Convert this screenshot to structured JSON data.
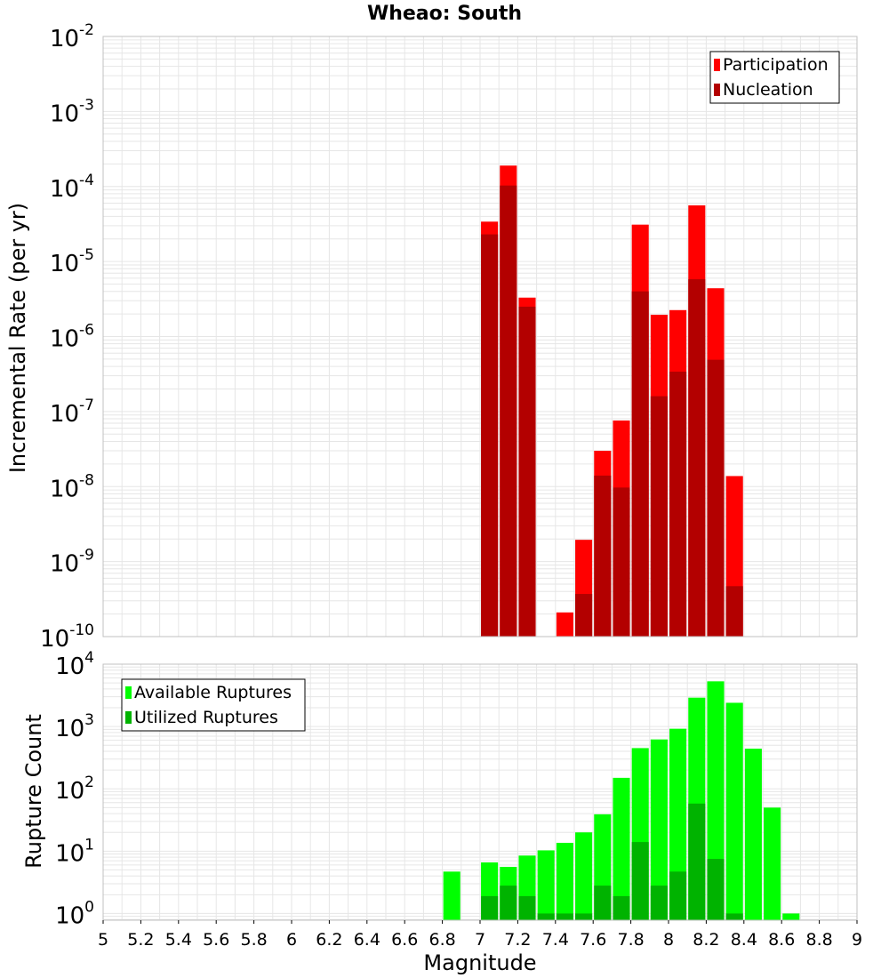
{
  "title": "Wheao: South",
  "colors": {
    "participation": "#ff0000",
    "nucleation": "#b30000",
    "available": "#00ff00",
    "utilized": "#00b300",
    "grid": "#e6e6e6",
    "frame": "#c0c0c0"
  },
  "chart_data": [
    {
      "type": "bar",
      "title": "Wheao: South",
      "xlabel": "",
      "ylabel": "Incremental Rate (per yr)",
      "yscale": "log",
      "xlim": [
        5,
        9
      ],
      "ylim": [
        1e-10,
        0.01
      ],
      "y_tick_exponents": [
        "-2",
        "-3",
        "-4",
        "-5",
        "-6",
        "-7",
        "-8",
        "-9",
        "-10"
      ],
      "y_tick_base": "10",
      "legend_position": "top-right",
      "grid": true,
      "bar_width": 0.09,
      "series": [
        {
          "name": "Participation",
          "color": "#ff0000",
          "points": [
            [
              7.05,
              3.4e-05
            ],
            [
              7.15,
              0.00019
            ],
            [
              7.25,
              3.3e-06
            ],
            [
              7.45,
              2.1e-10
            ],
            [
              7.55,
              1.95e-09
            ],
            [
              7.65,
              3e-08
            ],
            [
              7.75,
              7.6e-08
            ],
            [
              7.85,
              3.1e-05
            ],
            [
              7.95,
              1.95e-06
            ],
            [
              8.05,
              2.25e-06
            ],
            [
              8.15,
              5.6e-05
            ],
            [
              8.25,
              4.4e-06
            ],
            [
              8.35,
              1.38e-08
            ]
          ]
        },
        {
          "name": "Nucleation",
          "color": "#b30000",
          "points": [
            [
              7.05,
              2.3e-05
            ],
            [
              7.15,
              0.000103
            ],
            [
              7.25,
              2.5e-06
            ],
            [
              7.55,
              3.7e-10
            ],
            [
              7.65,
              1.4e-08
            ],
            [
              7.75,
              9.7e-09
            ],
            [
              7.85,
              4e-06
            ],
            [
              7.95,
              1.6e-07
            ],
            [
              8.05,
              3.4e-07
            ],
            [
              8.15,
              5.8e-06
            ],
            [
              8.25,
              4.9e-07
            ],
            [
              8.35,
              4.7e-10
            ]
          ]
        }
      ]
    },
    {
      "type": "bar",
      "xlabel": "Magnitude",
      "ylabel": "Rupture Count",
      "yscale": "log",
      "xlim": [
        5,
        9
      ],
      "ylim": [
        0.78,
        10000
      ],
      "x_ticks": [
        "5",
        "5.2",
        "5.4",
        "5.6",
        "5.8",
        "6",
        "6.2",
        "6.4",
        "6.6",
        "6.8",
        "7",
        "7.2",
        "7.4",
        "7.6",
        "7.8",
        "8",
        "8.2",
        "8.4",
        "8.6",
        "8.8",
        "9"
      ],
      "y_tick_exponents": [
        "4",
        "3",
        "2",
        "1",
        "0"
      ],
      "y_tick_base": "10",
      "legend_position": "top-left",
      "grid": true,
      "bar_width": 0.09,
      "series": [
        {
          "name": "Available Ruptures",
          "color": "#00ff00",
          "points": [
            [
              6.85,
              4.7
            ],
            [
              7.05,
              6.6
            ],
            [
              7.15,
              5.6
            ],
            [
              7.25,
              8.5
            ],
            [
              7.35,
              10.3
            ],
            [
              7.45,
              13.6
            ],
            [
              7.55,
              20.0
            ],
            [
              7.65,
              39.0
            ],
            [
              7.75,
              150
            ],
            [
              7.85,
              450
            ],
            [
              7.95,
              620
            ],
            [
              8.05,
              920
            ],
            [
              8.15,
              2900
            ],
            [
              8.25,
              5300
            ],
            [
              8.35,
              2400
            ],
            [
              8.45,
              440
            ],
            [
              8.55,
              50
            ],
            [
              8.65,
              1.0
            ]
          ]
        },
        {
          "name": "Utilized Ruptures",
          "color": "#00b300",
          "points": [
            [
              7.05,
              1.9
            ],
            [
              7.15,
              2.8
            ],
            [
              7.25,
              1.9
            ],
            [
              7.35,
              1.0
            ],
            [
              7.45,
              1.0
            ],
            [
              7.55,
              1.0
            ],
            [
              7.65,
              2.8
            ],
            [
              7.75,
              1.9
            ],
            [
              7.85,
              14.0
            ],
            [
              7.95,
              2.8
            ],
            [
              8.05,
              4.7
            ],
            [
              8.15,
              58
            ],
            [
              8.25,
              7.5
            ],
            [
              8.35,
              1.0
            ]
          ]
        }
      ]
    }
  ]
}
